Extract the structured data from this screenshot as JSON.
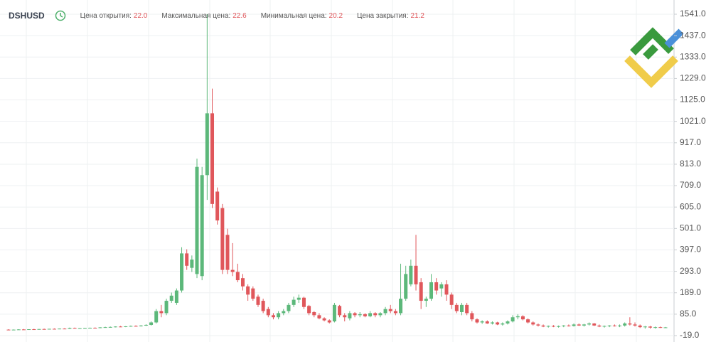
{
  "header": {
    "symbol": "DSHUSD",
    "fields": [
      {
        "label": "Цена открытия:",
        "value": "22.0"
      },
      {
        "label": "Максимальная цена:",
        "value": "22.6"
      },
      {
        "label": "Минимальная цена:",
        "value": "20.2"
      },
      {
        "label": "Цена закрытия:",
        "value": "21.2"
      }
    ]
  },
  "chart_data": {
    "type": "candlestick",
    "up_color": "#5cb87a",
    "down_color": "#e0575b",
    "grid": true,
    "ylim": [
      -50,
      1610
    ],
    "yticks": [
      {
        "value": 1541,
        "label": "1541.0"
      },
      {
        "value": 1437,
        "label": "1437.0"
      },
      {
        "value": 1333,
        "label": "1333.0"
      },
      {
        "value": 1229,
        "label": "1229.0"
      },
      {
        "value": 1125,
        "label": "1125.0"
      },
      {
        "value": 1021,
        "label": "1021.0"
      },
      {
        "value": 917,
        "label": "917.0"
      },
      {
        "value": 813,
        "label": "813.0"
      },
      {
        "value": 709,
        "label": "709.0"
      },
      {
        "value": 605,
        "label": "605.0"
      },
      {
        "value": 501,
        "label": "501.0"
      },
      {
        "value": 397,
        "label": "397.0"
      },
      {
        "value": 293,
        "label": "293.0"
      },
      {
        "value": 189,
        "label": "189.0"
      },
      {
        "value": 85,
        "label": "85.0"
      },
      {
        "value": -19,
        "label": "-19.0"
      }
    ],
    "open": [
      10,
      9,
      10,
      11,
      10,
      12,
      11,
      13,
      12,
      14,
      13,
      15,
      14,
      18,
      16,
      17,
      18,
      19,
      18,
      21,
      22,
      23,
      25,
      24,
      26,
      28,
      27,
      30,
      33,
      45,
      100,
      90,
      150,
      140,
      200,
      380,
      310,
      280,
      270,
      760,
      1060,
      680,
      600,
      470,
      300,
      290,
      260,
      220,
      210,
      170,
      150,
      110,
      80,
      70,
      90,
      100,
      130,
      155,
      165,
      125,
      95,
      80,
      65,
      55,
      50,
      125,
      80,
      65,
      90,
      80,
      85,
      75,
      90,
      80,
      90,
      110,
      100,
      90,
      160,
      230,
      320,
      240,
      150,
      160,
      240,
      210,
      230,
      180,
      130,
      95,
      130,
      90,
      60,
      45,
      50,
      40,
      45,
      35,
      40,
      50,
      70,
      75,
      60,
      45,
      35,
      30,
      25,
      28,
      25,
      27,
      30,
      28,
      35,
      30,
      35,
      40,
      30,
      25,
      28,
      30,
      28,
      30,
      40,
      35,
      30,
      22,
      25,
      20,
      22,
      20
    ],
    "high": [
      12,
      11,
      12,
      13,
      12,
      14,
      13,
      15,
      14,
      16,
      15,
      17,
      20,
      20,
      18,
      19,
      20,
      21,
      22,
      24,
      25,
      26,
      28,
      27,
      30,
      31,
      32,
      36,
      50,
      110,
      130,
      160,
      190,
      210,
      410,
      400,
      370,
      840,
      800,
      1541,
      1180,
      700,
      620,
      500,
      430,
      330,
      280,
      230,
      220,
      180,
      160,
      120,
      90,
      100,
      110,
      140,
      170,
      180,
      170,
      130,
      100,
      90,
      70,
      60,
      140,
      130,
      90,
      100,
      95,
      95,
      90,
      100,
      95,
      95,
      120,
      130,
      110,
      330,
      320,
      350,
      470,
      260,
      170,
      280,
      260,
      240,
      250,
      190,
      140,
      140,
      140,
      100,
      65,
      55,
      55,
      50,
      48,
      45,
      55,
      80,
      85,
      80,
      65,
      50,
      40,
      35,
      30,
      32,
      30,
      32,
      35,
      40,
      40,
      38,
      45,
      42,
      35,
      30,
      32,
      35,
      35,
      45,
      70,
      45,
      35,
      28,
      28,
      25,
      25,
      23
    ],
    "low": [
      8,
      8,
      9,
      9,
      9,
      10,
      10,
      11,
      11,
      12,
      12,
      13,
      13,
      15,
      14,
      15,
      16,
      17,
      17,
      19,
      20,
      21,
      22,
      22,
      24,
      25,
      25,
      28,
      30,
      40,
      70,
      80,
      140,
      130,
      190,
      300,
      290,
      260,
      250,
      640,
      600,
      520,
      280,
      280,
      270,
      240,
      200,
      150,
      150,
      120,
      90,
      70,
      60,
      60,
      80,
      90,
      120,
      140,
      110,
      80,
      70,
      60,
      50,
      40,
      45,
      70,
      50,
      55,
      70,
      70,
      70,
      70,
      70,
      70,
      80,
      90,
      80,
      80,
      150,
      220,
      200,
      110,
      120,
      150,
      180,
      170,
      150,
      110,
      90,
      80,
      80,
      50,
      40,
      38,
      38,
      35,
      32,
      30,
      35,
      45,
      60,
      55,
      40,
      30,
      25,
      22,
      20,
      22,
      20,
      22,
      25,
      25,
      28,
      25,
      30,
      28,
      22,
      20,
      22,
      25,
      22,
      25,
      30,
      25,
      18,
      15,
      15,
      15,
      18,
      18
    ],
    "close": [
      9,
      10,
      11,
      10,
      12,
      11,
      13,
      12,
      14,
      13,
      15,
      14,
      18,
      16,
      17,
      18,
      19,
      18,
      21,
      22,
      23,
      25,
      24,
      26,
      28,
      27,
      30,
      33,
      45,
      100,
      90,
      150,
      175,
      200,
      380,
      320,
      350,
      800,
      760,
      1060,
      620,
      540,
      300,
      300,
      290,
      250,
      220,
      180,
      160,
      130,
      100,
      80,
      70,
      90,
      100,
      130,
      155,
      165,
      120,
      90,
      80,
      65,
      55,
      45,
      130,
      80,
      70,
      90,
      80,
      85,
      75,
      90,
      80,
      90,
      110,
      100,
      90,
      160,
      280,
      320,
      230,
      150,
      160,
      240,
      200,
      230,
      180,
      130,
      100,
      130,
      90,
      60,
      45,
      50,
      40,
      45,
      35,
      40,
      50,
      70,
      75,
      60,
      45,
      35,
      30,
      25,
      28,
      25,
      27,
      30,
      28,
      35,
      30,
      35,
      40,
      30,
      25,
      28,
      30,
      28,
      30,
      40,
      35,
      30,
      22,
      25,
      20,
      22,
      20,
      21
    ]
  }
}
